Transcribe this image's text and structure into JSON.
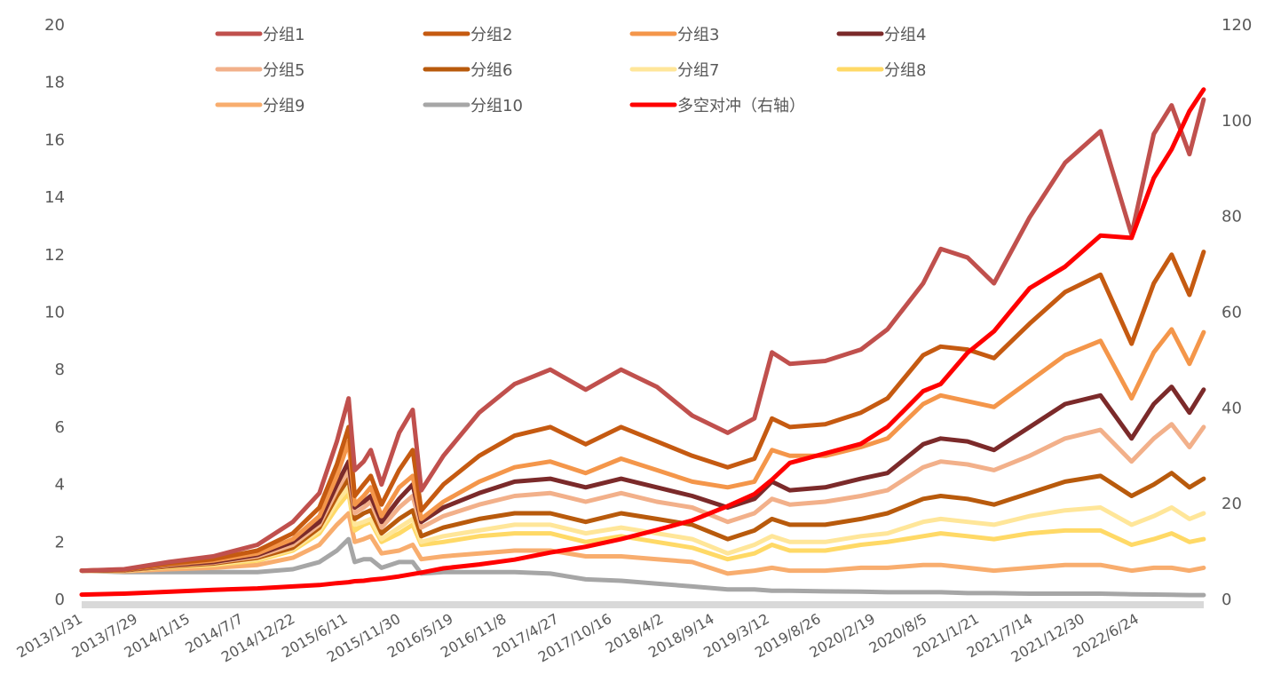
{
  "chart_data": {
    "type": "line",
    "title": "",
    "xlabel": "",
    "ylabel": "",
    "ylim": [
      0,
      20
    ],
    "y_ticks": [
      "0",
      "2",
      "4",
      "6",
      "8",
      "10",
      "12",
      "14",
      "16",
      "18",
      "20"
    ],
    "y2lim": [
      0,
      120
    ],
    "y2_ticks": [
      "0",
      "20",
      "40",
      "60",
      "80",
      "100",
      "120"
    ],
    "x_tick_labels": [
      "2013/1/31",
      "2013/7/29",
      "2014/1/15",
      "2014/7/7",
      "2014/12/22",
      "2015/6/11",
      "2015/11/30",
      "2016/5/19",
      "2016/11/8",
      "2017/4/27",
      "2017/10/16",
      "2018/4/2",
      "2018/9/14",
      "2019/3/12",
      "2019/8/26",
      "2020/2/19",
      "2020/8/5",
      "2021/1/21",
      "2021/7/14",
      "2021/12/30",
      "2022/6/24"
    ],
    "grid": false,
    "legend_position": "top",
    "x": [
      "2013-01-31",
      "2013-06-18",
      "2013-11-10",
      "2014-04-03",
      "2014-08-25",
      "2014-12-18",
      "2015-03-14",
      "2015-05-10",
      "2015-06-17",
      "2015-07-07",
      "2015-08-05",
      "2015-08-28",
      "2015-10-02",
      "2015-11-28",
      "2016-01-11",
      "2016-02-08",
      "2016-04-20",
      "2016-08-14",
      "2016-12-07",
      "2017-04-02",
      "2017-07-26",
      "2017-11-18",
      "2018-03-14",
      "2018-07-07",
      "2018-10-30",
      "2019-01-25",
      "2019-03-23",
      "2019-05-20",
      "2019-09-12",
      "2020-01-06",
      "2020-04-01",
      "2020-07-26",
      "2020-09-21",
      "2020-12-17",
      "2021-03-13",
      "2021-07-07",
      "2021-10-30",
      "2022-02-22",
      "2022-06-03",
      "2022-08-14",
      "2022-10-11",
      "2022-12-08",
      "2023-01-23"
    ],
    "series": [
      {
        "name": "分组1",
        "color": "#C0504D",
        "axis": "left",
        "values": [
          1.0,
          1.05,
          1.3,
          1.5,
          1.9,
          2.7,
          3.7,
          5.5,
          7.0,
          4.5,
          4.8,
          5.2,
          4.0,
          5.8,
          6.6,
          3.8,
          5.0,
          6.5,
          7.5,
          8.0,
          7.3,
          8.0,
          7.4,
          6.4,
          5.8,
          6.3,
          8.6,
          8.2,
          8.3,
          8.7,
          9.4,
          11.0,
          12.2,
          11.9,
          11.0,
          13.3,
          15.2,
          16.3,
          12.7,
          16.2,
          17.2,
          15.5,
          17.4
        ]
      },
      {
        "name": "分组2",
        "color": "#C55A11",
        "axis": "left",
        "values": [
          1.0,
          1.04,
          1.25,
          1.4,
          1.7,
          2.3,
          3.2,
          4.7,
          6.0,
          3.6,
          4.0,
          4.3,
          3.3,
          4.5,
          5.2,
          3.1,
          4.0,
          5.0,
          5.7,
          6.0,
          5.4,
          6.0,
          5.5,
          5.0,
          4.6,
          4.9,
          6.3,
          6.0,
          6.1,
          6.5,
          7.0,
          8.5,
          8.8,
          8.7,
          8.4,
          9.6,
          10.7,
          11.3,
          8.9,
          11.0,
          12.0,
          10.6,
          12.1
        ]
      },
      {
        "name": "分组3",
        "color": "#F4964A",
        "axis": "left",
        "values": [
          1.0,
          1.03,
          1.22,
          1.35,
          1.6,
          2.1,
          2.9,
          4.3,
          5.5,
          3.3,
          3.6,
          3.9,
          2.9,
          3.9,
          4.3,
          2.8,
          3.4,
          4.1,
          4.6,
          4.8,
          4.4,
          4.9,
          4.5,
          4.1,
          3.9,
          4.1,
          5.2,
          5.0,
          5.0,
          5.3,
          5.6,
          6.8,
          7.1,
          6.9,
          6.7,
          7.6,
          8.5,
          9.0,
          7.0,
          8.6,
          9.4,
          8.2,
          9.3
        ]
      },
      {
        "name": "分组4",
        "color": "#7B2A2A",
        "axis": "left",
        "values": [
          1.0,
          1.02,
          1.2,
          1.3,
          1.55,
          2.0,
          2.7,
          4.0,
          4.8,
          3.2,
          3.4,
          3.6,
          2.7,
          3.5,
          4.0,
          2.7,
          3.2,
          3.7,
          4.1,
          4.2,
          3.9,
          4.2,
          3.9,
          3.6,
          3.2,
          3.5,
          4.1,
          3.8,
          3.9,
          4.2,
          4.4,
          5.4,
          5.6,
          5.5,
          5.2,
          6.0,
          6.8,
          7.1,
          5.6,
          6.8,
          7.4,
          6.5,
          7.3
        ]
      },
      {
        "name": "分组5",
        "color": "#F2B08A",
        "axis": "left",
        "values": [
          1.0,
          1.02,
          1.18,
          1.28,
          1.5,
          1.9,
          2.6,
          3.8,
          4.5,
          3.0,
          3.2,
          3.4,
          2.5,
          3.2,
          3.6,
          2.5,
          2.9,
          3.3,
          3.6,
          3.7,
          3.4,
          3.7,
          3.4,
          3.2,
          2.7,
          3.0,
          3.5,
          3.3,
          3.4,
          3.6,
          3.8,
          4.6,
          4.8,
          4.7,
          4.5,
          5.0,
          5.6,
          5.9,
          4.8,
          5.6,
          6.1,
          5.3,
          6.0
        ]
      },
      {
        "name": "分组6",
        "color": "#B85A0C",
        "axis": "left",
        "values": [
          1.0,
          1.01,
          1.15,
          1.25,
          1.45,
          1.8,
          2.5,
          3.6,
          4.2,
          2.8,
          3.0,
          3.1,
          2.3,
          2.8,
          3.1,
          2.2,
          2.5,
          2.8,
          3.0,
          3.0,
          2.7,
          3.0,
          2.8,
          2.6,
          2.1,
          2.4,
          2.8,
          2.6,
          2.6,
          2.8,
          3.0,
          3.5,
          3.6,
          3.5,
          3.3,
          3.7,
          4.1,
          4.3,
          3.6,
          4.0,
          4.4,
          3.9,
          4.2
        ]
      },
      {
        "name": "分组7",
        "color": "#FFE699",
        "axis": "left",
        "values": [
          1.0,
          1.0,
          1.13,
          1.22,
          1.4,
          1.75,
          2.4,
          3.4,
          3.9,
          2.6,
          2.7,
          2.8,
          2.1,
          2.5,
          2.8,
          2.0,
          2.2,
          2.4,
          2.6,
          2.6,
          2.3,
          2.5,
          2.3,
          2.1,
          1.6,
          1.9,
          2.2,
          2.0,
          2.0,
          2.2,
          2.3,
          2.7,
          2.8,
          2.7,
          2.6,
          2.9,
          3.1,
          3.2,
          2.6,
          2.9,
          3.2,
          2.8,
          3.0
        ]
      },
      {
        "name": "分组8",
        "color": "#FFD966",
        "axis": "left",
        "values": [
          1.0,
          1.0,
          1.12,
          1.2,
          1.35,
          1.7,
          2.3,
          3.2,
          3.7,
          2.4,
          2.6,
          2.7,
          2.0,
          2.3,
          2.6,
          1.9,
          2.0,
          2.2,
          2.3,
          2.3,
          2.0,
          2.2,
          2.0,
          1.8,
          1.4,
          1.6,
          1.9,
          1.7,
          1.7,
          1.9,
          2.0,
          2.2,
          2.3,
          2.2,
          2.1,
          2.3,
          2.4,
          2.4,
          1.9,
          2.1,
          2.3,
          2.0,
          2.1
        ]
      },
      {
        "name": "分组9",
        "color": "#F8AD6E",
        "axis": "left",
        "values": [
          1.0,
          0.98,
          1.05,
          1.1,
          1.2,
          1.45,
          1.9,
          2.6,
          3.0,
          2.0,
          2.1,
          2.2,
          1.6,
          1.7,
          1.9,
          1.4,
          1.5,
          1.6,
          1.7,
          1.7,
          1.5,
          1.5,
          1.4,
          1.3,
          0.9,
          1.0,
          1.1,
          1.0,
          1.0,
          1.1,
          1.1,
          1.2,
          1.2,
          1.1,
          1.0,
          1.1,
          1.2,
          1.2,
          1.0,
          1.1,
          1.1,
          1.0,
          1.1
        ]
      },
      {
        "name": "分组10",
        "color": "#A6A6A6",
        "axis": "left",
        "values": [
          1.0,
          0.95,
          0.95,
          0.95,
          0.95,
          1.05,
          1.3,
          1.7,
          2.1,
          1.3,
          1.4,
          1.4,
          1.1,
          1.3,
          1.3,
          0.9,
          0.95,
          0.95,
          0.95,
          0.9,
          0.7,
          0.65,
          0.55,
          0.45,
          0.35,
          0.35,
          0.3,
          0.3,
          0.28,
          0.27,
          0.25,
          0.25,
          0.25,
          0.22,
          0.22,
          0.2,
          0.2,
          0.2,
          0.18,
          0.17,
          0.16,
          0.15,
          0.15
        ]
      },
      {
        "name": "多空对冲（右轴）",
        "color": "#FF0000",
        "axis": "right",
        "values": [
          1.0,
          1.2,
          1.6,
          2.0,
          2.3,
          2.7,
          3.0,
          3.4,
          3.6,
          3.8,
          3.9,
          4.1,
          4.3,
          4.8,
          5.3,
          5.6,
          6.5,
          7.3,
          8.3,
          9.8,
          11.0,
          12.6,
          14.5,
          16.5,
          19.5,
          22.0,
          25.0,
          28.5,
          30.5,
          32.5,
          36.0,
          43.5,
          45.0,
          51.5,
          56.0,
          65.0,
          69.5,
          76.0,
          75.5,
          88.0,
          94.0,
          102.0,
          106.5
        ]
      }
    ]
  }
}
